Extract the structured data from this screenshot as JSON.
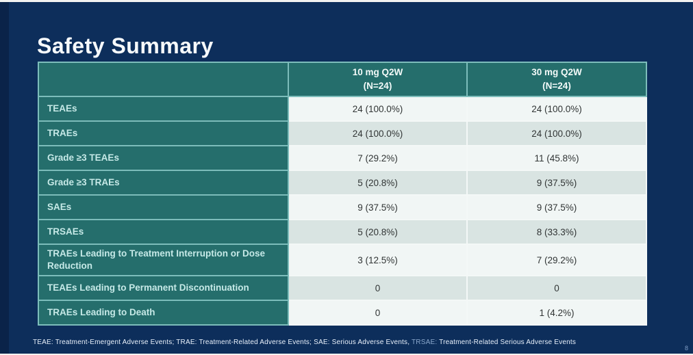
{
  "slide": {
    "title": "Safety Summary",
    "page_number": "8"
  },
  "table": {
    "columns": [
      {
        "label": "10 mg Q2W",
        "sublabel": "(N=24)"
      },
      {
        "label": "30 mg Q2W",
        "sublabel": "(N=24)"
      }
    ],
    "rows": [
      {
        "label": "TEAEs",
        "col1": "24 (100.0%)",
        "col2": "24 (100.0%)"
      },
      {
        "label": "TRAEs",
        "col1": "24 (100.0%)",
        "col2": "24 (100.0%)"
      },
      {
        "label": "Grade ≥3 TEAEs",
        "col1": "7 (29.2%)",
        "col2": "11 (45.8%)"
      },
      {
        "label": "Grade ≥3 TRAEs",
        "col1": "5 (20.8%)",
        "col2": "9 (37.5%)"
      },
      {
        "label": "SAEs",
        "col1": "9 (37.5%)",
        "col2": "9 (37.5%)"
      },
      {
        "label": "TRSAEs",
        "col1": "5 (20.8%)",
        "col2": "8 (33.3%)"
      },
      {
        "label": "TRAEs Leading to Treatment Interruption or Dose Reduction",
        "col1": "3 (12.5%)",
        "col2": "7 (29.2%)"
      },
      {
        "label": "TEAEs Leading to Permanent Discontinuation",
        "col1": "0",
        "col2": "0"
      },
      {
        "label": "TRAEs Leading to Death",
        "col1": "0",
        "col2": "1 (4.2%)"
      }
    ]
  },
  "footnote": {
    "part1": "TEAE: Treatment-Emergent Adverse Events; TRAE: Treatment-Related Adverse Events; SAE: Serious Adverse Events, ",
    "abbrev": "TRSAE:",
    "part2": " Treatment-Related Serious Adverse Events"
  },
  "colors": {
    "background_navy": "#0d2e5b",
    "left_band_navy": "#0a2349",
    "teal_cell": "#256e6c",
    "teal_border": "#7dbdbb",
    "row_light": "#f1f6f5",
    "row_dark": "#d9e4e2",
    "label_text": "#c6e9e7",
    "data_text": "#303434"
  }
}
